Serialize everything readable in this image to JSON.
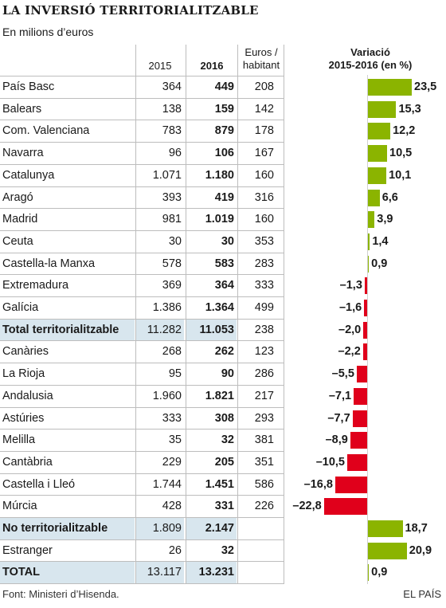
{
  "title": "LA INVERSIÓ TERRITORIALITZABLE",
  "subtitle": "En milions d’euros",
  "headers": {
    "y2015": "2015",
    "y2016": "2016",
    "euros_line1": "Euros /",
    "euros_line2": "habitant",
    "var_line1": "Variació",
    "var_line2": "2015-2016 (en %)"
  },
  "colors": {
    "positive": "#8bb400",
    "negative": "#e0001b",
    "highlight": "#d8e6ee"
  },
  "chart_data": {
    "type": "table",
    "columns": [
      "",
      "2015",
      "2016",
      "Euros / habitant",
      "Variació 2015-2016 (en %)"
    ],
    "variation_axis": {
      "min": -22.8,
      "max": 23.5,
      "zero_line": true
    },
    "rows": [
      {
        "name": "País Basc",
        "y2015": "364",
        "y2016": "449",
        "per_capita": "208",
        "var": 23.5,
        "var_label": "23,5"
      },
      {
        "name": "Balears",
        "y2015": "138",
        "y2016": "159",
        "per_capita": "142",
        "var": 15.3,
        "var_label": "15,3"
      },
      {
        "name": "Com. Valenciana",
        "y2015": "783",
        "y2016": "879",
        "per_capita": "178",
        "var": 12.2,
        "var_label": "12,2"
      },
      {
        "name": "Navarra",
        "y2015": "96",
        "y2016": "106",
        "per_capita": "167",
        "var": 10.5,
        "var_label": "10,5"
      },
      {
        "name": "Catalunya",
        "y2015": "1.071",
        "y2016": "1.180",
        "per_capita": "160",
        "var": 10.1,
        "var_label": "10,1"
      },
      {
        "name": "Aragó",
        "y2015": "393",
        "y2016": "419",
        "per_capita": "316",
        "var": 6.6,
        "var_label": "6,6"
      },
      {
        "name": "Madrid",
        "y2015": "981",
        "y2016": "1.019",
        "per_capita": "160",
        "var": 3.9,
        "var_label": "3,9"
      },
      {
        "name": "Ceuta",
        "y2015": "30",
        "y2016": "30",
        "per_capita": "353",
        "var": 1.4,
        "var_label": "1,4"
      },
      {
        "name": "Castella-la Manxa",
        "y2015": "578",
        "y2016": "583",
        "per_capita": "283",
        "var": 0.9,
        "var_label": "0,9"
      },
      {
        "name": "Extremadura",
        "y2015": "369",
        "y2016": "364",
        "per_capita": "333",
        "var": -1.3,
        "var_label": "–1,3"
      },
      {
        "name": "Galícia",
        "y2015": "1.386",
        "y2016": "1.364",
        "per_capita": "499",
        "var": -1.6,
        "var_label": "–1,6"
      },
      {
        "name": "Total territorialitzable",
        "y2015": "11.282",
        "y2016": "11.053",
        "per_capita": "238",
        "var": -2.0,
        "var_label": "–2,0",
        "highlight": true
      },
      {
        "name": "Canàries",
        "y2015": "268",
        "y2016": "262",
        "per_capita": "123",
        "var": -2.2,
        "var_label": "–2,2"
      },
      {
        "name": "La Rioja",
        "y2015": "95",
        "y2016": "90",
        "per_capita": "286",
        "var": -5.5,
        "var_label": "–5,5"
      },
      {
        "name": "Andalusia",
        "y2015": "1.960",
        "y2016": "1.821",
        "per_capita": "217",
        "var": -7.1,
        "var_label": "–7,1"
      },
      {
        "name": "Astúries",
        "y2015": "333",
        "y2016": "308",
        "per_capita": "293",
        "var": -7.7,
        "var_label": "–7,7"
      },
      {
        "name": "Melilla",
        "y2015": "35",
        "y2016": "32",
        "per_capita": "381",
        "var": -8.9,
        "var_label": "–8,9"
      },
      {
        "name": "Cantàbria",
        "y2015": "229",
        "y2016": "205",
        "per_capita": "351",
        "var": -10.5,
        "var_label": "–10,5"
      },
      {
        "name": "Castella i Lleó",
        "y2015": "1.744",
        "y2016": "1.451",
        "per_capita": "586",
        "var": -16.8,
        "var_label": "–16,8"
      },
      {
        "name": "Múrcia",
        "y2015": "428",
        "y2016": "331",
        "per_capita": "226",
        "var": -22.8,
        "var_label": "–22,8"
      },
      {
        "name": "No territorialitzable",
        "y2015": "1.809",
        "y2016": "2.147",
        "per_capita": "",
        "var": 18.7,
        "var_label": "18,7",
        "highlight": true
      },
      {
        "name": "Estranger",
        "y2015": "26",
        "y2016": "32",
        "per_capita": "",
        "var": 20.9,
        "var_label": "20,9"
      },
      {
        "name": "TOTAL",
        "y2015": "13.117",
        "y2016": "13.231",
        "per_capita": "",
        "var": 0.9,
        "var_label": "0,9",
        "highlight": true
      }
    ]
  },
  "footer": {
    "source": "Font: Ministeri d’Hisenda.",
    "brand": "EL PAÍS"
  }
}
